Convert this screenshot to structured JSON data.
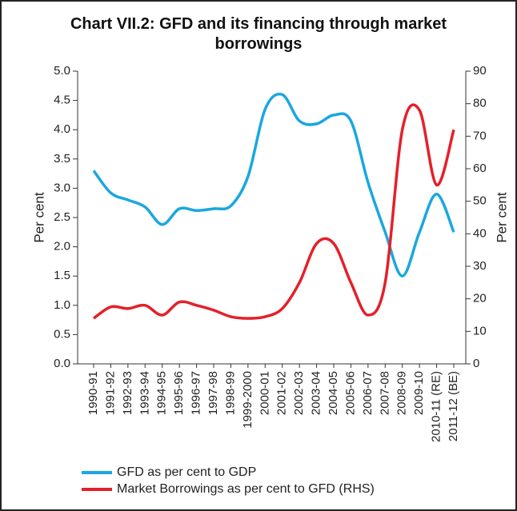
{
  "chart_data": {
    "type": "line",
    "title": "Chart VII.2: GFD and its financing through market borrowings",
    "y_label": "Per cent",
    "y2_label": "Per cent",
    "categories": [
      "1990-91",
      "1991-92",
      "1992-93",
      "1993-94",
      "1994-95",
      "1995-96",
      "1996-97",
      "1997-98",
      "1998-99",
      "1999-2000",
      "2000-01",
      "2001-02",
      "2002-03",
      "2003-04",
      "2004-05",
      "2005-06",
      "2006-07",
      "2007-08",
      "2008-09",
      "2009-10",
      "2010-11 (RE)",
      "2011-12 (BE)"
    ],
    "series": [
      {
        "name": "GFD as per cent to GDP",
        "color": "#1aa7e0",
        "values": [
          3.3,
          2.92,
          2.8,
          2.68,
          2.38,
          2.65,
          2.62,
          2.65,
          2.7,
          3.2,
          4.35,
          4.6,
          4.15,
          4.1,
          4.25,
          4.15,
          3.1,
          2.25,
          1.5,
          2.25,
          2.9,
          2.25
        ]
      },
      {
        "name": "Market Borrowings as per cent to GFD (RHS)",
        "color": "#e4202a",
        "axis": "y2",
        "values": [
          14,
          17.5,
          17,
          18,
          15,
          19,
          18,
          16.5,
          14.5,
          14,
          14.5,
          17,
          25,
          37,
          37,
          25,
          15,
          25,
          72,
          78,
          55,
          72
        ]
      }
    ],
    "ylim": [
      0,
      5
    ],
    "yticks": [
      {
        "value": 0,
        "label": "0.0"
      },
      {
        "value": 0.5,
        "label": "0.5"
      },
      {
        "value": 1,
        "label": "1.0"
      },
      {
        "value": 1.5,
        "label": "1.5"
      },
      {
        "value": 2,
        "label": "2.0"
      },
      {
        "value": 2.5,
        "label": "2.5"
      },
      {
        "value": 3,
        "label": "3.0"
      },
      {
        "value": 3.5,
        "label": "3.5"
      },
      {
        "value": 4,
        "label": "4.0"
      },
      {
        "value": 4.5,
        "label": "4.5"
      },
      {
        "value": 5,
        "label": "5.0"
      }
    ],
    "y2lim": [
      0,
      90
    ],
    "y2ticks": [
      0,
      10,
      20,
      30,
      40,
      50,
      60,
      70,
      80,
      90
    ],
    "grid": false,
    "legend": "bottom"
  }
}
